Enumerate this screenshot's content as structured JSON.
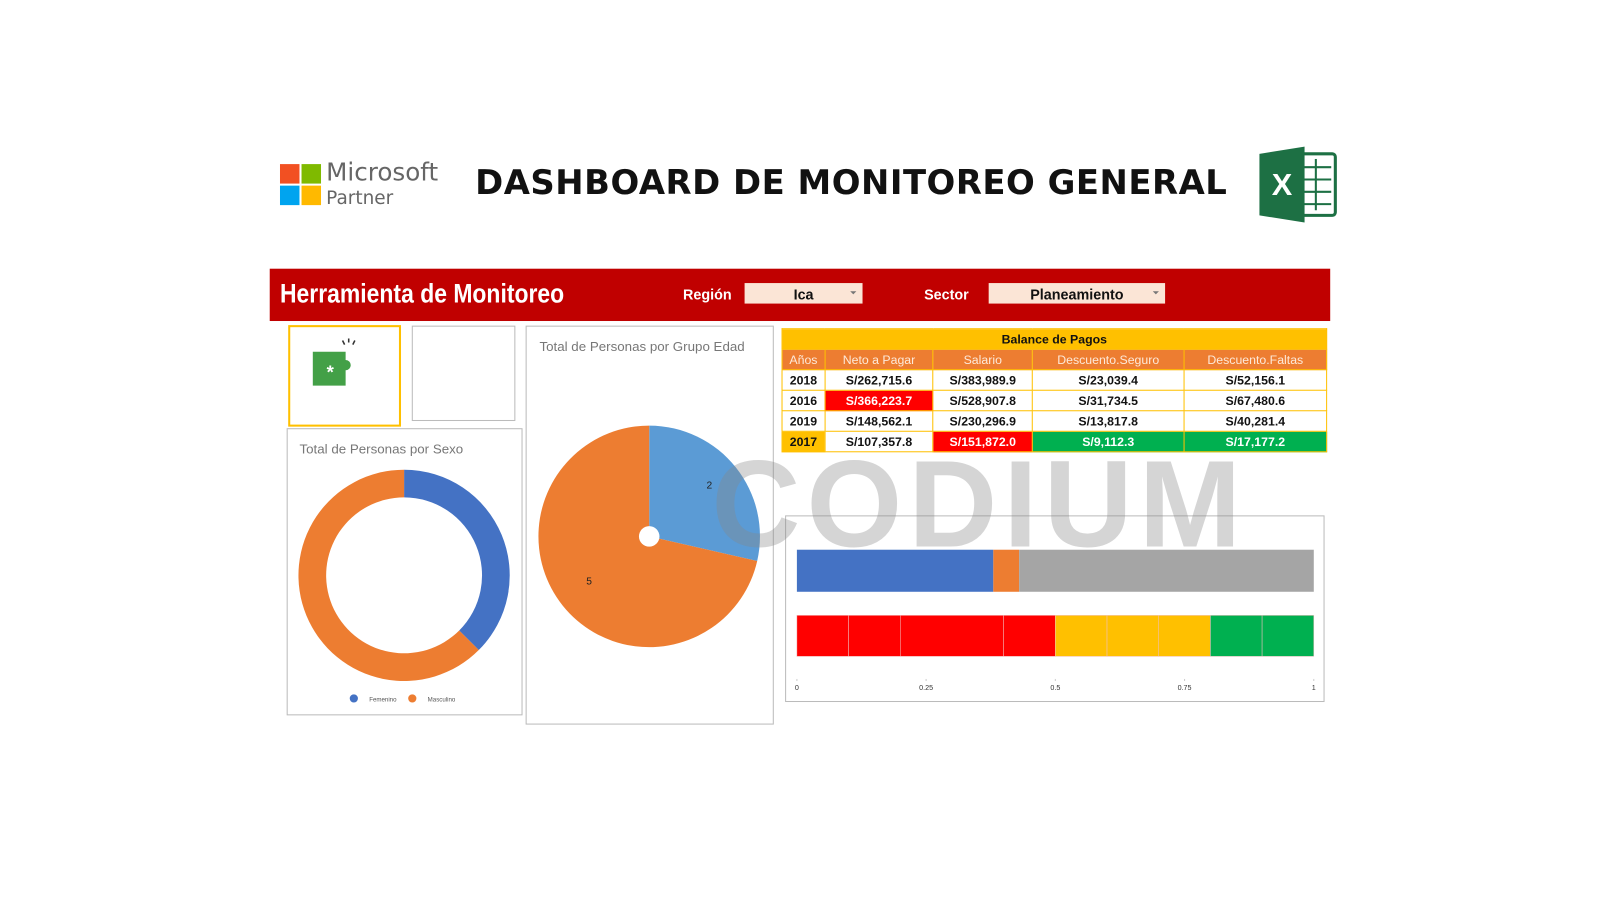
{
  "header": {
    "brand": "Microsoft",
    "brand_sub": "Partner",
    "title": "DASHBOARD DE MONITOREO GENERAL"
  },
  "toolbar": {
    "title": "Herramienta de Monitoreo",
    "region_label": "Región",
    "region_value": "Ica",
    "sector_label": "Sector",
    "sector_value": "Planeamiento"
  },
  "table": {
    "title": "Balance de Pagos",
    "columns": [
      "Años",
      "Neto a Pagar",
      "Salario",
      "Descuento.Seguro",
      "Descuento.Faltas"
    ],
    "rows": [
      [
        "2018",
        "S/262,715.6",
        "S/383,989.9",
        "S/23,039.4",
        "S/52,156.1"
      ],
      [
        "2016",
        "S/366,223.7",
        "S/528,907.8",
        "S/31,734.5",
        "S/67,480.6"
      ],
      [
        "2019",
        "S/148,562.1",
        "S/230,296.9",
        "S/13,817.8",
        "S/40,281.4"
      ],
      [
        "2017",
        "S/107,357.8",
        "S/151,872.0",
        "S/9,112.3",
        "S/17,177.2"
      ]
    ]
  },
  "watermark": "CODIUM",
  "chart_data": [
    {
      "type": "donut",
      "title": "Total de Personas por Sexo",
      "categories": [
        "Femenino",
        "Masculino"
      ],
      "colors": [
        "#4472c4",
        "#ed7d31"
      ],
      "values": [
        3,
        5
      ]
    },
    {
      "type": "pie",
      "title": "Total de Personas por Grupo Edad",
      "categories": [
        null,
        null
      ],
      "colors": [
        "#5b9bd5",
        "#ed7d31"
      ],
      "values": [
        2,
        5
      ]
    },
    {
      "type": "stacked-bar",
      "orientation": "horizontal",
      "xlim": [
        0,
        1
      ],
      "xticks": [
        0,
        0.25,
        0.5,
        0.75,
        1
      ],
      "bars": [
        {
          "colors": [
            "#4472c4",
            "#ed7d31",
            "#a5a5a5"
          ],
          "values": [
            0.38,
            0.05,
            0.57
          ]
        },
        {
          "colors": [
            "#ff0000",
            "#ff0000",
            "#ff0000",
            "#ff0000",
            "#ffc000",
            "#ffc000",
            "#ffc000",
            "#00b050",
            "#00b050"
          ],
          "values": [
            0.1,
            0.1,
            0.2,
            0.1,
            0.1,
            0.1,
            0.1,
            0.1,
            0.1
          ]
        }
      ]
    }
  ]
}
